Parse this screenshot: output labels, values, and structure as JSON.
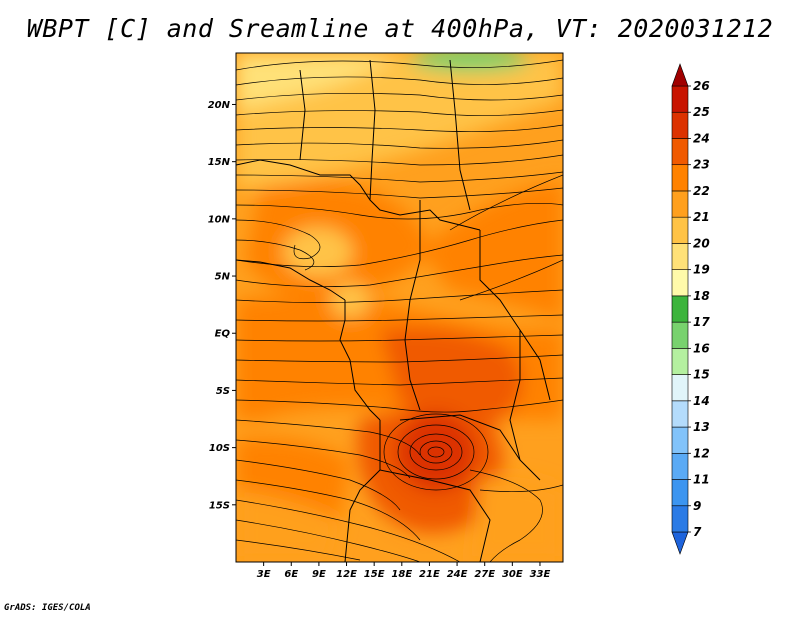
{
  "title": "WBPT [C] and Sreamline at 400hPa, VT: 2020031212",
  "footer": "GrADS: IGES/COLA",
  "map": {
    "variable": "WBPT",
    "units": "C",
    "level": "400hPa",
    "valid_time": "2020031212",
    "lat_labels": [
      "20N",
      "15N",
      "10N",
      "5N",
      "EQ",
      "5S",
      "10S",
      "15S"
    ],
    "lat_values": [
      20,
      15,
      10,
      5,
      0,
      -5,
      -10,
      -15
    ],
    "lon_labels": [
      "3E",
      "6E",
      "9E",
      "12E",
      "15E",
      "18E",
      "21E",
      "24E",
      "27E",
      "30E",
      "33E"
    ],
    "lon_values": [
      3,
      6,
      9,
      12,
      15,
      18,
      21,
      24,
      27,
      30,
      33
    ],
    "lat_range": [
      -20,
      24.5
    ],
    "lon_range": [
      0,
      35.5
    ]
  },
  "colorbar": {
    "labels": [
      "7",
      "9",
      "11",
      "12",
      "13",
      "14",
      "15",
      "16",
      "17",
      "18",
      "19",
      "20",
      "21",
      "22",
      "23",
      "24",
      "25",
      "26"
    ],
    "colors": [
      "#1e64dc",
      "#2b7be6",
      "#3c95f0",
      "#5aaaf5",
      "#82c3fa",
      "#b4dcfc",
      "#e1f5fa",
      "#b4f0a0",
      "#78d26e",
      "#3cb43c",
      "#fffaaa",
      "#ffe178",
      "#ffc346",
      "#ffa01e",
      "#ff8200",
      "#f05a00",
      "#dc3200",
      "#c81400",
      "#a00000"
    ]
  }
}
